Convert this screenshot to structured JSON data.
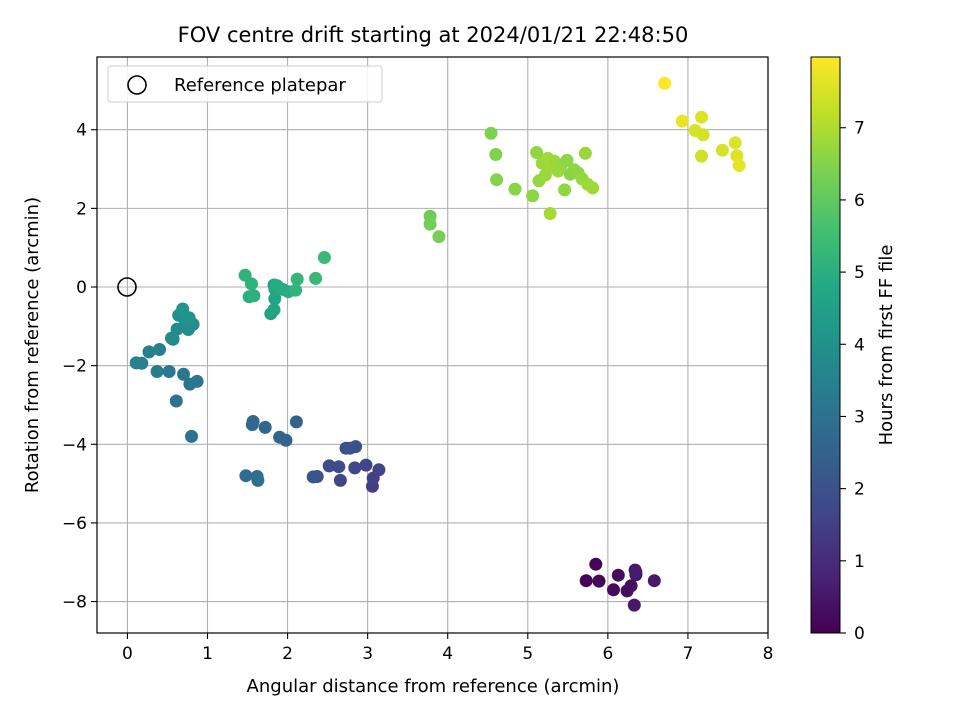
{
  "chart_data": {
    "type": "scatter",
    "title": "FOV centre drift starting at 2024/01/21 22:48:50",
    "xlabel": "Angular distance from reference (arcmin)",
    "ylabel": "Rotation from reference (arcmin)",
    "xlim": [
      -0.38,
      8.0
    ],
    "ylim": [
      -8.8,
      5.85
    ],
    "xticks": [
      0,
      1,
      2,
      3,
      4,
      5,
      6,
      7,
      8
    ],
    "yticks": [
      -8,
      -6,
      -4,
      -2,
      0,
      2,
      4
    ],
    "xtick_labels": [
      "0",
      "1",
      "2",
      "3",
      "4",
      "5",
      "6",
      "7",
      "8"
    ],
    "ytick_labels": [
      "−8",
      "−6",
      "−4",
      "−2",
      "0",
      "2",
      "4"
    ],
    "grid": true,
    "legend": {
      "placement": "top-left",
      "label": "Reference platepar"
    },
    "reference_point": {
      "x": 0,
      "y": 0
    },
    "colorbar": {
      "label": "Hours from first FF file",
      "colormap": "viridis",
      "range": [
        0,
        7.98
      ],
      "ticks": [
        0,
        1,
        2,
        3,
        4,
        5,
        6,
        7
      ],
      "tick_labels": [
        "0",
        "1",
        "2",
        "3",
        "4",
        "5",
        "6",
        "7"
      ]
    },
    "points": [
      [
        5.73,
        -7.47,
        0.05
      ],
      [
        5.85,
        -7.05,
        0.1
      ],
      [
        5.89,
        -7.48,
        0.15
      ],
      [
        6.07,
        -7.7,
        0.2
      ],
      [
        6.13,
        -7.33,
        0.25
      ],
      [
        6.24,
        -7.73,
        0.3
      ],
      [
        6.29,
        -7.6,
        0.35
      ],
      [
        6.34,
        -7.2,
        0.4
      ],
      [
        6.35,
        -7.32,
        0.45
      ],
      [
        6.33,
        -8.09,
        0.5
      ],
      [
        6.58,
        -7.47,
        0.55
      ],
      [
        6.35,
        -7.25,
        0.6
      ],
      [
        3.06,
        -5.07,
        1.5
      ],
      [
        3.07,
        -4.86,
        1.55
      ],
      [
        3.14,
        -4.65,
        1.6
      ],
      [
        2.98,
        -4.53,
        1.65
      ],
      [
        2.84,
        -4.6,
        1.7
      ],
      [
        2.66,
        -4.92,
        1.75
      ],
      [
        2.52,
        -4.55,
        1.8
      ],
      [
        2.64,
        -4.57,
        1.85
      ],
      [
        2.73,
        -4.1,
        1.9
      ],
      [
        2.85,
        -4.06,
        1.95
      ],
      [
        2.78,
        -4.1,
        2.0
      ],
      [
        2.37,
        -4.82,
        2.05
      ],
      [
        2.32,
        -4.83,
        2.1
      ],
      [
        2.11,
        -3.43,
        2.5
      ],
      [
        1.98,
        -3.9,
        2.55
      ],
      [
        1.9,
        -3.82,
        2.6
      ],
      [
        1.72,
        -3.57,
        2.65
      ],
      [
        1.57,
        -3.42,
        2.7
      ],
      [
        1.56,
        -3.5,
        2.75
      ],
      [
        1.48,
        -4.8,
        2.8
      ],
      [
        1.62,
        -4.82,
        2.85
      ],
      [
        1.63,
        -4.92,
        2.9
      ],
      [
        0.8,
        -3.8,
        3.0
      ],
      [
        0.61,
        -2.9,
        3.05
      ],
      [
        0.78,
        -2.47,
        3.1
      ],
      [
        0.87,
        -2.4,
        3.15
      ],
      [
        0.7,
        -2.22,
        3.2
      ],
      [
        0.52,
        -2.15,
        3.25
      ],
      [
        0.37,
        -2.15,
        3.3
      ],
      [
        0.4,
        -1.59,
        3.35
      ],
      [
        0.27,
        -1.65,
        3.4
      ],
      [
        0.18,
        -1.94,
        3.45
      ],
      [
        0.11,
        -1.93,
        3.5
      ],
      [
        0.57,
        -1.33,
        3.7
      ],
      [
        0.62,
        -1.07,
        3.75
      ],
      [
        0.55,
        -1.3,
        3.8
      ],
      [
        0.76,
        -1.08,
        3.85
      ],
      [
        0.82,
        -0.95,
        3.9
      ],
      [
        0.64,
        -0.72,
        3.95
      ],
      [
        0.72,
        -0.85,
        4.0
      ],
      [
        0.77,
        -0.78,
        4.05
      ],
      [
        0.69,
        -0.56,
        4.1
      ],
      [
        1.79,
        -0.68,
        4.6
      ],
      [
        1.83,
        -0.58,
        4.65
      ],
      [
        1.84,
        -0.3,
        4.7
      ],
      [
        1.84,
        -0.05,
        4.75
      ],
      [
        1.83,
        0.05,
        4.8
      ],
      [
        1.94,
        -0.06,
        4.85
      ],
      [
        1.87,
        0.03,
        4.9
      ],
      [
        2.01,
        -0.12,
        4.95
      ],
      [
        1.52,
        -0.25,
        5.0
      ],
      [
        1.58,
        -0.22,
        5.05
      ],
      [
        1.55,
        0.08,
        5.1
      ],
      [
        1.47,
        0.3,
        5.15
      ],
      [
        2.1,
        -0.08,
        5.2
      ],
      [
        2.12,
        0.2,
        5.25
      ],
      [
        2.35,
        0.22,
        5.3
      ],
      [
        2.46,
        0.75,
        5.35
      ],
      [
        3.78,
        1.8,
        6.2
      ],
      [
        3.78,
        1.6,
        6.25
      ],
      [
        3.89,
        1.28,
        6.3
      ],
      [
        4.54,
        3.91,
        6.4
      ],
      [
        4.6,
        3.37,
        6.45
      ],
      [
        4.61,
        2.73,
        6.5
      ],
      [
        4.84,
        2.49,
        6.55
      ],
      [
        5.06,
        2.32,
        6.6
      ],
      [
        5.11,
        3.42,
        6.65
      ],
      [
        5.14,
        2.7,
        6.7
      ],
      [
        5.18,
        3.15,
        6.75
      ],
      [
        5.22,
        2.85,
        6.8
      ],
      [
        5.25,
        3.27,
        6.85
      ],
      [
        5.28,
        1.87,
        6.9
      ],
      [
        5.3,
        3.05,
        6.85
      ],
      [
        5.33,
        3.2,
        6.8
      ],
      [
        5.38,
        2.95,
        6.75
      ],
      [
        5.42,
        3.11,
        6.7
      ],
      [
        5.46,
        2.47,
        6.65
      ],
      [
        5.49,
        3.22,
        6.6
      ],
      [
        5.53,
        2.87,
        6.55
      ],
      [
        5.58,
        2.98,
        6.6
      ],
      [
        5.63,
        2.9,
        6.65
      ],
      [
        5.68,
        2.75,
        6.7
      ],
      [
        5.72,
        3.4,
        6.75
      ],
      [
        5.75,
        2.61,
        6.8
      ],
      [
        5.81,
        2.52,
        6.85
      ],
      [
        6.71,
        5.18,
        7.95
      ],
      [
        6.93,
        4.22,
        7.7
      ],
      [
        7.09,
        3.98,
        7.5
      ],
      [
        7.17,
        4.32,
        7.55
      ],
      [
        7.19,
        3.87,
        7.45
      ],
      [
        7.17,
        3.33,
        7.4
      ],
      [
        7.43,
        3.48,
        7.45
      ],
      [
        7.59,
        3.67,
        7.55
      ],
      [
        7.61,
        3.34,
        7.6
      ],
      [
        7.64,
        3.09,
        7.65
      ]
    ]
  }
}
